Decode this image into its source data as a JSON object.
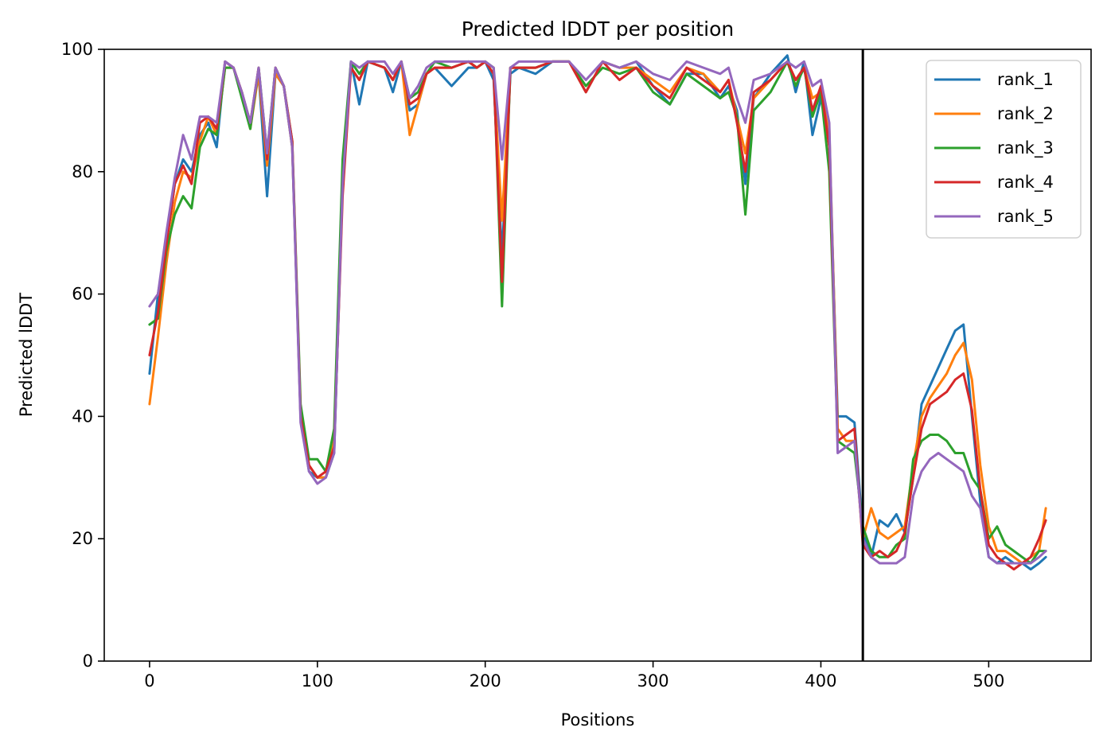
{
  "chart_data": {
    "type": "line",
    "title": "Predicted lDDT per position",
    "xlabel": "Positions",
    "ylabel": "Predicted lDDT",
    "xlim": [
      -27,
      561
    ],
    "ylim": [
      0,
      100
    ],
    "xticks": [
      0,
      100,
      200,
      300,
      400,
      500
    ],
    "yticks": [
      0,
      20,
      40,
      60,
      80,
      100
    ],
    "grid": false,
    "legend_position": "top-right",
    "vline_x": 425,
    "series": [
      {
        "name": "rank_1",
        "color": "#1f77b4",
        "x": [
          0,
          5,
          10,
          15,
          20,
          25,
          30,
          35,
          40,
          45,
          50,
          55,
          60,
          65,
          70,
          75,
          80,
          85,
          90,
          95,
          100,
          105,
          110,
          115,
          120,
          125,
          130,
          140,
          145,
          150,
          155,
          160,
          165,
          170,
          180,
          190,
          195,
          200,
          205,
          210,
          215,
          220,
          230,
          240,
          250,
          260,
          270,
          280,
          290,
          300,
          310,
          320,
          330,
          340,
          345,
          350,
          355,
          360,
          370,
          380,
          385,
          390,
          395,
          400,
          405,
          410,
          415,
          420,
          425,
          430,
          435,
          440,
          445,
          450,
          455,
          460,
          465,
          470,
          475,
          480,
          485,
          490,
          495,
          500,
          505,
          510,
          515,
          520,
          525,
          530,
          534
        ],
        "y": [
          47,
          60,
          68,
          78,
          82,
          80,
          86,
          88,
          84,
          98,
          97,
          93,
          88,
          96,
          76,
          96,
          94,
          84,
          40,
          31,
          30,
          30,
          34,
          78,
          98,
          91,
          98,
          97,
          93,
          98,
          90,
          91,
          96,
          97,
          94,
          97,
          97,
          98,
          95,
          66,
          96,
          97,
          96,
          98,
          98,
          93,
          98,
          97,
          98,
          94,
          91,
          96,
          96,
          92,
          94,
          90,
          78,
          92,
          96,
          99,
          93,
          98,
          86,
          92,
          85,
          40,
          40,
          39,
          21,
          17,
          23,
          22,
          24,
          21,
          30,
          42,
          45,
          48,
          51,
          54,
          55,
          40,
          26,
          17,
          16,
          17,
          16,
          16,
          15,
          16,
          17
        ]
      },
      {
        "name": "rank_2",
        "color": "#ff7f0e",
        "x": [
          0,
          5,
          10,
          15,
          20,
          25,
          30,
          35,
          40,
          45,
          50,
          55,
          60,
          65,
          70,
          75,
          80,
          85,
          90,
          95,
          100,
          105,
          110,
          115,
          120,
          125,
          130,
          140,
          145,
          150,
          155,
          160,
          165,
          170,
          180,
          190,
          195,
          200,
          205,
          210,
          215,
          220,
          230,
          240,
          250,
          260,
          270,
          280,
          290,
          300,
          310,
          320,
          330,
          340,
          345,
          350,
          355,
          360,
          370,
          380,
          385,
          390,
          395,
          400,
          405,
          410,
          415,
          420,
          425,
          430,
          435,
          440,
          445,
          450,
          455,
          460,
          465,
          470,
          475,
          480,
          485,
          490,
          495,
          500,
          505,
          510,
          515,
          520,
          525,
          530,
          534
        ],
        "y": [
          42,
          53,
          65,
          75,
          80,
          79,
          85,
          89,
          86,
          97,
          97,
          93,
          87,
          96,
          81,
          96,
          94,
          84,
          41,
          32,
          30,
          30,
          36,
          80,
          97,
          95,
          98,
          97,
          95,
          98,
          86,
          91,
          96,
          97,
          97,
          98,
          97,
          98,
          96,
          72,
          97,
          97,
          97,
          98,
          98,
          93,
          98,
          97,
          97,
          95,
          93,
          97,
          96,
          93,
          95,
          89,
          83,
          92,
          95,
          98,
          95,
          97,
          92,
          93,
          87,
          38,
          36,
          36,
          20,
          25,
          21,
          20,
          21,
          22,
          32,
          40,
          43,
          45,
          47,
          50,
          52,
          46,
          32,
          22,
          18,
          18,
          17,
          16,
          17,
          18,
          25
        ]
      },
      {
        "name": "rank_3",
        "color": "#2ca02c",
        "x": [
          0,
          5,
          10,
          15,
          20,
          25,
          30,
          35,
          40,
          45,
          50,
          55,
          60,
          65,
          70,
          75,
          80,
          85,
          90,
          95,
          100,
          105,
          110,
          115,
          120,
          125,
          130,
          140,
          145,
          150,
          155,
          160,
          165,
          170,
          180,
          190,
          195,
          200,
          205,
          210,
          215,
          220,
          230,
          240,
          250,
          260,
          270,
          280,
          290,
          300,
          310,
          320,
          330,
          340,
          345,
          350,
          355,
          360,
          370,
          380,
          385,
          390,
          395,
          400,
          405,
          410,
          415,
          420,
          425,
          430,
          435,
          440,
          445,
          450,
          455,
          460,
          465,
          470,
          475,
          480,
          485,
          490,
          495,
          500,
          505,
          510,
          515,
          520,
          525,
          530,
          534
        ],
        "y": [
          55,
          56,
          67,
          73,
          76,
          74,
          84,
          87,
          86,
          97,
          97,
          92,
          87,
          97,
          83,
          97,
          94,
          85,
          42,
          33,
          33,
          31,
          38,
          82,
          98,
          96,
          98,
          97,
          95,
          98,
          92,
          93,
          96,
          98,
          97,
          98,
          97,
          98,
          97,
          58,
          97,
          97,
          97,
          98,
          98,
          94,
          97,
          96,
          97,
          93,
          91,
          96,
          94,
          92,
          93,
          89,
          73,
          90,
          93,
          98,
          94,
          97,
          89,
          93,
          80,
          36,
          35,
          34,
          22,
          18,
          17,
          17,
          19,
          20,
          33,
          36,
          37,
          37,
          36,
          34,
          34,
          30,
          28,
          20,
          22,
          19,
          18,
          17,
          16,
          18,
          18
        ]
      },
      {
        "name": "rank_4",
        "color": "#d62728",
        "x": [
          0,
          5,
          10,
          15,
          20,
          25,
          30,
          35,
          40,
          45,
          50,
          55,
          60,
          65,
          70,
          75,
          80,
          85,
          90,
          95,
          100,
          105,
          110,
          115,
          120,
          125,
          130,
          140,
          145,
          150,
          155,
          160,
          165,
          170,
          180,
          190,
          195,
          200,
          205,
          210,
          215,
          220,
          230,
          240,
          250,
          260,
          270,
          280,
          290,
          300,
          310,
          320,
          330,
          340,
          345,
          350,
          355,
          360,
          370,
          380,
          385,
          390,
          395,
          400,
          405,
          410,
          415,
          420,
          425,
          430,
          435,
          440,
          445,
          450,
          455,
          460,
          465,
          470,
          475,
          480,
          485,
          490,
          495,
          500,
          505,
          510,
          515,
          520,
          525,
          530,
          534
        ],
        "y": [
          50,
          57,
          68,
          78,
          81,
          78,
          88,
          89,
          87,
          98,
          97,
          93,
          88,
          97,
          82,
          97,
          94,
          85,
          40,
          32,
          30,
          31,
          35,
          76,
          97,
          95,
          98,
          97,
          95,
          98,
          91,
          92,
          96,
          97,
          97,
          98,
          97,
          98,
          96,
          62,
          97,
          97,
          97,
          98,
          98,
          93,
          98,
          95,
          97,
          94,
          92,
          97,
          95,
          93,
          95,
          88,
          80,
          93,
          95,
          98,
          95,
          97,
          90,
          94,
          84,
          36,
          37,
          38,
          19,
          17,
          18,
          17,
          18,
          21,
          30,
          38,
          42,
          43,
          44,
          46,
          47,
          41,
          28,
          19,
          17,
          16,
          15,
          16,
          17,
          20,
          23
        ]
      },
      {
        "name": "rank_5",
        "color": "#9467bd",
        "x": [
          0,
          5,
          10,
          15,
          20,
          25,
          30,
          35,
          40,
          45,
          50,
          55,
          60,
          65,
          70,
          75,
          80,
          85,
          90,
          95,
          100,
          105,
          110,
          115,
          120,
          125,
          130,
          140,
          145,
          150,
          155,
          160,
          165,
          170,
          180,
          190,
          195,
          200,
          205,
          210,
          215,
          220,
          230,
          240,
          250,
          260,
          270,
          280,
          290,
          300,
          310,
          320,
          330,
          340,
          345,
          350,
          355,
          360,
          370,
          380,
          385,
          390,
          395,
          400,
          405,
          410,
          415,
          420,
          425,
          430,
          435,
          440,
          445,
          450,
          455,
          460,
          465,
          470,
          475,
          480,
          485,
          490,
          495,
          500,
          505,
          510,
          515,
          520,
          525,
          530,
          534
        ],
        "y": [
          58,
          60,
          70,
          79,
          86,
          82,
          89,
          89,
          88,
          98,
          97,
          93,
          88,
          97,
          83,
          97,
          94,
          84,
          39,
          31,
          29,
          30,
          34,
          78,
          98,
          97,
          98,
          98,
          96,
          98,
          92,
          94,
          97,
          98,
          98,
          98,
          98,
          98,
          97,
          82,
          97,
          98,
          98,
          98,
          98,
          95,
          98,
          97,
          98,
          96,
          95,
          98,
          97,
          96,
          97,
          92,
          88,
          95,
          96,
          98,
          97,
          98,
          94,
          95,
          88,
          34,
          35,
          36,
          20,
          17,
          16,
          16,
          16,
          17,
          27,
          31,
          33,
          34,
          33,
          32,
          31,
          27,
          25,
          17,
          16,
          16,
          16,
          16,
          16,
          17,
          18
        ]
      }
    ]
  }
}
